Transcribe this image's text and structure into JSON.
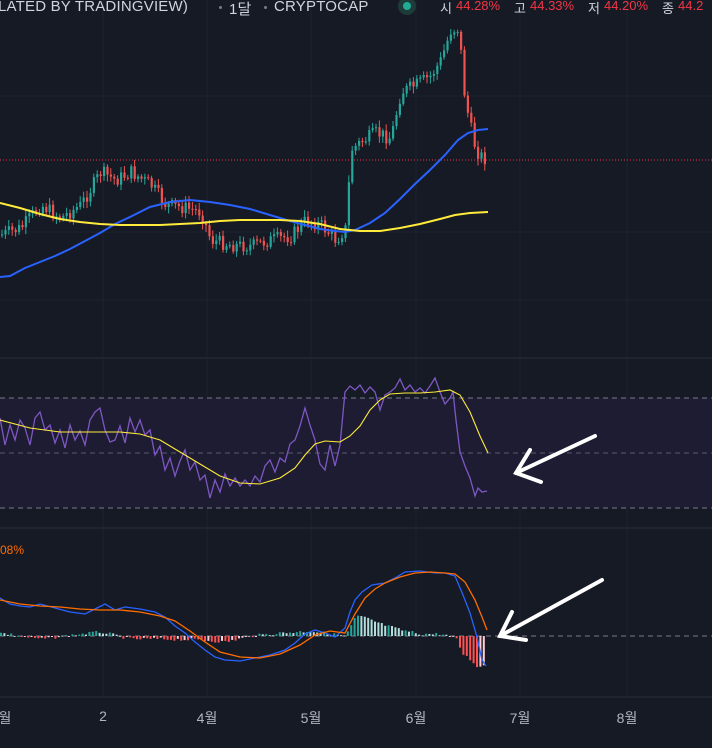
{
  "header": {
    "title": "LATED BY TRADINGVIEW)",
    "interval": "1달",
    "exchange": "CRYPTOCAP",
    "ohlc": [
      {
        "key": "시",
        "value": "44.28%"
      },
      {
        "key": "고",
        "value": "44.33%"
      },
      {
        "key": "저",
        "value": "44.20%"
      },
      {
        "key": "종",
        "value": "44.2"
      }
    ]
  },
  "macd": {
    "label": "08%"
  },
  "time_axis": {
    "labels": [
      "월",
      "2",
      "4월",
      "5월",
      "6월",
      "7월",
      "8월"
    ]
  },
  "colors": {
    "background": "#161a25",
    "candle_up": "#26a69a",
    "candle_down": "#ef5350",
    "ma_fast": "#2962ff",
    "ma_slow": "#ffeb3b",
    "rsi_line": "#7e57c2",
    "rsi_signal": "#ffeb3b",
    "macd_line": "#2962ff",
    "macd_signal": "#ff6d00",
    "arrow": "#ffffff"
  },
  "annotations": [
    {
      "name": "rsi-arrow",
      "points_to": "RSI"
    },
    {
      "name": "macd-arrow",
      "points_to": "MACD histogram"
    }
  ]
}
